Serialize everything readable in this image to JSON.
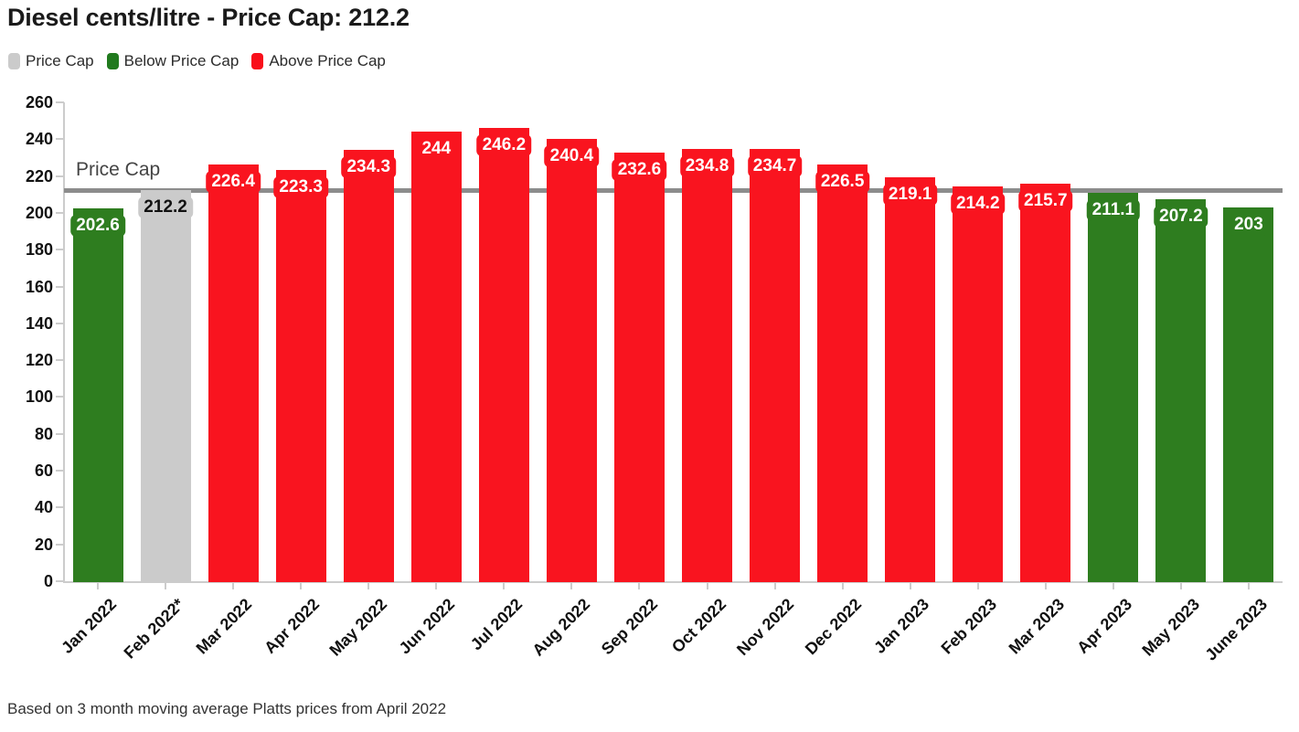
{
  "title": "Diesel cents/litre - Price Cap: 212.2",
  "legend": {
    "items": [
      {
        "label": "Price Cap",
        "color": "#cbcbcb"
      },
      {
        "label": "Below Price Cap",
        "color": "#217a1e"
      },
      {
        "label": "Above Price Cap",
        "color": "#f90f1b"
      }
    ]
  },
  "annotation": {
    "price_cap_label": "Price Cap"
  },
  "footer": {
    "note": "Based on 3 month moving average Platts prices from April 2022"
  },
  "chart_data": {
    "type": "bar",
    "title": "Diesel cents/litre - Price Cap: 212.2",
    "price_cap": 212.2,
    "categories": [
      "Jan 2022",
      "Feb 2022*",
      "Mar 2022",
      "Apr 2022",
      "May 2022",
      "Jun 2022",
      "Jul 2022",
      "Aug 2022",
      "Sep 2022",
      "Oct 2022",
      "Nov 2022",
      "Dec 2022",
      "Jan 2023",
      "Feb 2023",
      "Mar 2023",
      "Apr 2023",
      "May 2023",
      "June 2023"
    ],
    "values": [
      202.6,
      212.2,
      226.4,
      223.3,
      234.3,
      244,
      246.2,
      240.4,
      232.6,
      234.8,
      234.7,
      226.5,
      219.1,
      214.2,
      215.7,
      211.1,
      207.2,
      203
    ],
    "bar_status": [
      "below",
      "cap",
      "above",
      "above",
      "above",
      "above",
      "above",
      "above",
      "above",
      "above",
      "above",
      "above",
      "above",
      "above",
      "above",
      "below",
      "below",
      "below"
    ],
    "status_colors": {
      "below": "#2e7d1f",
      "cap": "#cbcbcb",
      "above": "#f9141f"
    },
    "label_text_colors": {
      "below": "#ffffff",
      "cap": "#111111",
      "above": "#ffffff"
    },
    "cap_line_color": "#8c8c8c",
    "axis_color": "#cccccc",
    "xlabel": "",
    "ylabel": "",
    "ylim": [
      0,
      260
    ],
    "ytick_step": 20,
    "grid": false,
    "legend_position": "top",
    "value_labels_shown": true,
    "cap_annotation": "Price Cap"
  }
}
